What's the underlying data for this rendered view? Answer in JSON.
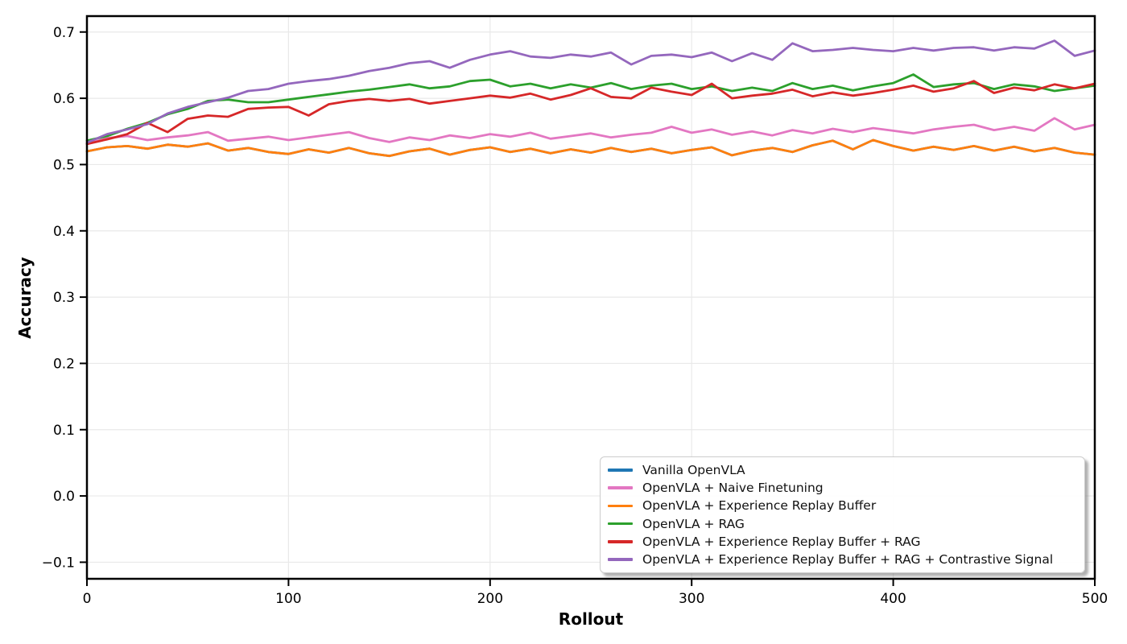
{
  "figure": {
    "background": "#ffffff"
  },
  "chart_data": {
    "type": "line",
    "title": "",
    "xlabel": "Rollout",
    "ylabel": "Accuracy",
    "xlim": [
      0,
      500
    ],
    "ylim": [
      -0.125,
      0.724
    ],
    "xticks": [
      0,
      100,
      200,
      300,
      400,
      500
    ],
    "xtick_labels": [
      "0",
      "100",
      "200",
      "300",
      "400",
      "500"
    ],
    "yticks": [
      -0.1,
      0.0,
      0.1,
      0.2,
      0.3,
      0.4,
      0.5,
      0.6,
      0.7
    ],
    "ytick_labels": [
      "−0.1",
      "0.0",
      "0.1",
      "0.2",
      "0.3",
      "0.4",
      "0.5",
      "0.6",
      "0.7"
    ],
    "grid": true,
    "grid_color": "#e9e9e9",
    "legend_position": "lower right",
    "x_start": 0,
    "x_step": 10,
    "series": [
      {
        "id": "vanilla-openvla",
        "name": "Vanilla OpenVLA",
        "color": "#1f77b4",
        "values": [
          0.52,
          0.526,
          0.528,
          0.524,
          0.53,
          0.527,
          0.532,
          0.521,
          0.525,
          0.519,
          0.516,
          0.523,
          0.518,
          0.525,
          0.517,
          0.513,
          0.52,
          0.524,
          0.515,
          0.522,
          0.526,
          0.519,
          0.524,
          0.517,
          0.523,
          0.518,
          0.525,
          0.519,
          0.524,
          0.517,
          0.522,
          0.526,
          0.514,
          0.521,
          0.525,
          0.519,
          0.529,
          0.536,
          0.523,
          0.537,
          0.528,
          0.521,
          0.527,
          0.522,
          0.528,
          0.521,
          0.527,
          0.52,
          0.525,
          0.518,
          0.515
        ]
      },
      {
        "id": "naive-finetuning",
        "name": "OpenVLA + Naive Finetuning",
        "color": "#e377c2",
        "values": [
          0.531,
          0.54,
          0.543,
          0.537,
          0.541,
          0.544,
          0.549,
          0.536,
          0.539,
          0.542,
          0.537,
          0.541,
          0.545,
          0.549,
          0.54,
          0.534,
          0.541,
          0.537,
          0.544,
          0.54,
          0.546,
          0.542,
          0.548,
          0.539,
          0.543,
          0.547,
          0.541,
          0.545,
          0.548,
          0.557,
          0.548,
          0.553,
          0.545,
          0.55,
          0.544,
          0.552,
          0.547,
          0.554,
          0.549,
          0.555,
          0.551,
          0.547,
          0.553,
          0.557,
          0.56,
          0.552,
          0.557,
          0.551,
          0.57,
          0.553,
          0.56
        ]
      },
      {
        "id": "experience-replay-buffer",
        "name": "OpenVLA + Experience Replay Buffer",
        "color": "#ff7f0e",
        "values": [
          0.52,
          0.526,
          0.528,
          0.524,
          0.53,
          0.527,
          0.532,
          0.521,
          0.525,
          0.519,
          0.516,
          0.523,
          0.518,
          0.525,
          0.517,
          0.513,
          0.52,
          0.524,
          0.515,
          0.522,
          0.526,
          0.519,
          0.524,
          0.517,
          0.523,
          0.518,
          0.525,
          0.519,
          0.524,
          0.517,
          0.522,
          0.526,
          0.514,
          0.521,
          0.525,
          0.519,
          0.529,
          0.536,
          0.523,
          0.537,
          0.528,
          0.521,
          0.527,
          0.522,
          0.528,
          0.521,
          0.527,
          0.52,
          0.525,
          0.518,
          0.515
        ]
      },
      {
        "id": "rag",
        "name": "OpenVLA + RAG",
        "color": "#2ca02c",
        "values": [
          0.536,
          0.543,
          0.554,
          0.563,
          0.576,
          0.584,
          0.596,
          0.598,
          0.594,
          0.594,
          0.598,
          0.602,
          0.606,
          0.61,
          0.613,
          0.617,
          0.621,
          0.615,
          0.618,
          0.626,
          0.628,
          0.618,
          0.622,
          0.615,
          0.621,
          0.616,
          0.623,
          0.614,
          0.619,
          0.622,
          0.614,
          0.618,
          0.611,
          0.616,
          0.611,
          0.623,
          0.614,
          0.619,
          0.612,
          0.618,
          0.623,
          0.636,
          0.617,
          0.621,
          0.623,
          0.614,
          0.621,
          0.618,
          0.611,
          0.615,
          0.619
        ]
      },
      {
        "id": "erb-rag",
        "name": "OpenVLA + Experience Replay Buffer + RAG",
        "color": "#d62728",
        "values": [
          0.531,
          0.538,
          0.546,
          0.563,
          0.549,
          0.569,
          0.574,
          0.572,
          0.584,
          0.586,
          0.587,
          0.574,
          0.591,
          0.596,
          0.599,
          0.596,
          0.599,
          0.592,
          0.596,
          0.6,
          0.604,
          0.601,
          0.607,
          0.598,
          0.605,
          0.615,
          0.602,
          0.6,
          0.616,
          0.61,
          0.605,
          0.622,
          0.6,
          0.604,
          0.607,
          0.613,
          0.603,
          0.609,
          0.604,
          0.608,
          0.613,
          0.619,
          0.61,
          0.615,
          0.626,
          0.608,
          0.616,
          0.612,
          0.621,
          0.615,
          0.622
        ]
      },
      {
        "id": "erb-rag-contrastive",
        "name": "OpenVLA + Experience Replay Buffer + RAG + Contrastive Signal",
        "color": "#9467bd",
        "values": [
          0.533,
          0.546,
          0.553,
          0.561,
          0.577,
          0.587,
          0.594,
          0.601,
          0.611,
          0.614,
          0.622,
          0.626,
          0.629,
          0.634,
          0.641,
          0.646,
          0.653,
          0.656,
          0.646,
          0.658,
          0.666,
          0.671,
          0.663,
          0.661,
          0.666,
          0.663,
          0.669,
          0.651,
          0.664,
          0.666,
          0.662,
          0.669,
          0.656,
          0.668,
          0.658,
          0.683,
          0.671,
          0.673,
          0.676,
          0.673,
          0.671,
          0.676,
          0.672,
          0.676,
          0.677,
          0.672,
          0.677,
          0.675,
          0.687,
          0.664,
          0.672
        ]
      }
    ]
  }
}
